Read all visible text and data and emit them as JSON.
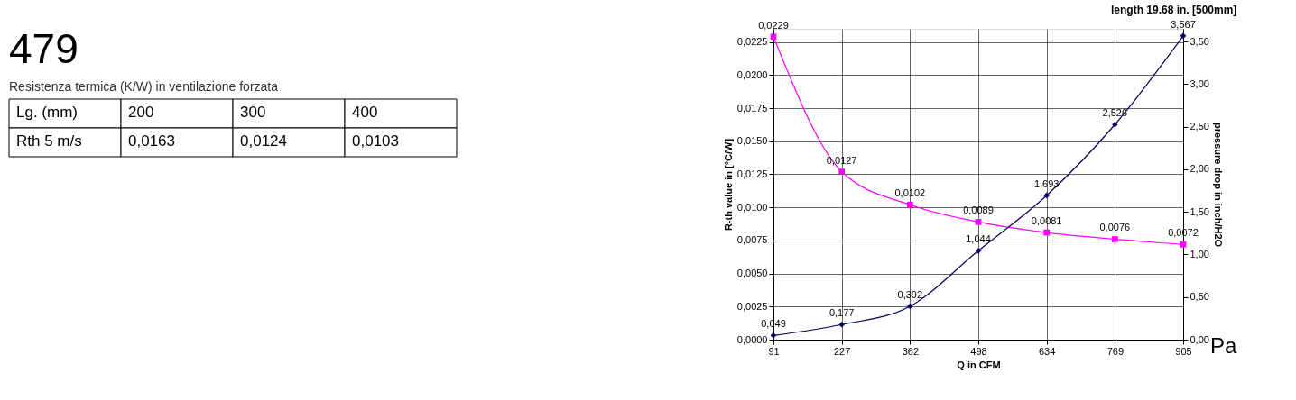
{
  "chart_data": [
    {
      "type": "other",
      "title": "479",
      "subtitle": "Resistenza termica (K/W) in ventilazione forzata",
      "annotations": [
        "Lg. (mm)",
        "200",
        "300",
        "400",
        "Rth 5 m/s",
        "0,0163",
        "0,0124",
        "0,0103"
      ]
    },
    {
      "type": "line",
      "title": "length 19.68 in. [500mm]",
      "xlabel": "Q in CFM",
      "ylabel": "R-th value in [°C/W]",
      "y2label": "pressure drop in inch/H2O",
      "categories": [
        "91",
        "227",
        "362",
        "498",
        "634",
        "769",
        "905"
      ],
      "series": [
        {
          "color": "#ff00ff",
          "marker": "square",
          "values": [
            0.0229,
            0.0127,
            0.0102,
            0.0089,
            0.0081,
            0.0076,
            0.0072
          ],
          "value_labels": [
            "0,0229",
            "0,0127",
            "0,0102",
            "0,0089",
            "0,0081",
            "0,0076",
            "0,0072"
          ]
        },
        {
          "color": "#000066",
          "marker": "diamond",
          "axis": "y2",
          "values": [
            0.049,
            0.177,
            0.392,
            1.044,
            1.693,
            2.526,
            3.567
          ],
          "value_labels": [
            "0,049",
            "0,177",
            "0,392",
            "1,044",
            "1,693",
            "2,526",
            "3,567"
          ]
        }
      ],
      "ylim": [
        0,
        0.0235
      ],
      "yticks": [
        {
          "value": 0,
          "label": "0,0000"
        },
        {
          "value": 0.0025,
          "label": "0,0025"
        },
        {
          "value": 0.005,
          "label": "0,0050"
        },
        {
          "value": 0.0075,
          "label": "0,0075"
        },
        {
          "value": 0.01,
          "label": "0,0100"
        },
        {
          "value": 0.0125,
          "label": "0,0125"
        },
        {
          "value": 0.015,
          "label": "0,0150"
        },
        {
          "value": 0.0175,
          "label": "0,0175"
        },
        {
          "value": 0.02,
          "label": "0,0200"
        },
        {
          "value": 0.0225,
          "label": "0,0225"
        }
      ],
      "y2lim": [
        0,
        3.65
      ],
      "y2ticks": [
        {
          "value": 0,
          "label": "0,00"
        },
        {
          "value": 0.5,
          "label": "0,50"
        },
        {
          "value": 1,
          "label": "1,00"
        },
        {
          "value": 1.5,
          "label": "1,50"
        },
        {
          "value": 2,
          "label": "2,00"
        },
        {
          "value": 2.5,
          "label": "2,50"
        },
        {
          "value": 3,
          "label": "3,00"
        },
        {
          "value": 3.5,
          "label": "3,50"
        }
      ],
      "grid": true,
      "annotations": [
        "Pa"
      ]
    }
  ]
}
